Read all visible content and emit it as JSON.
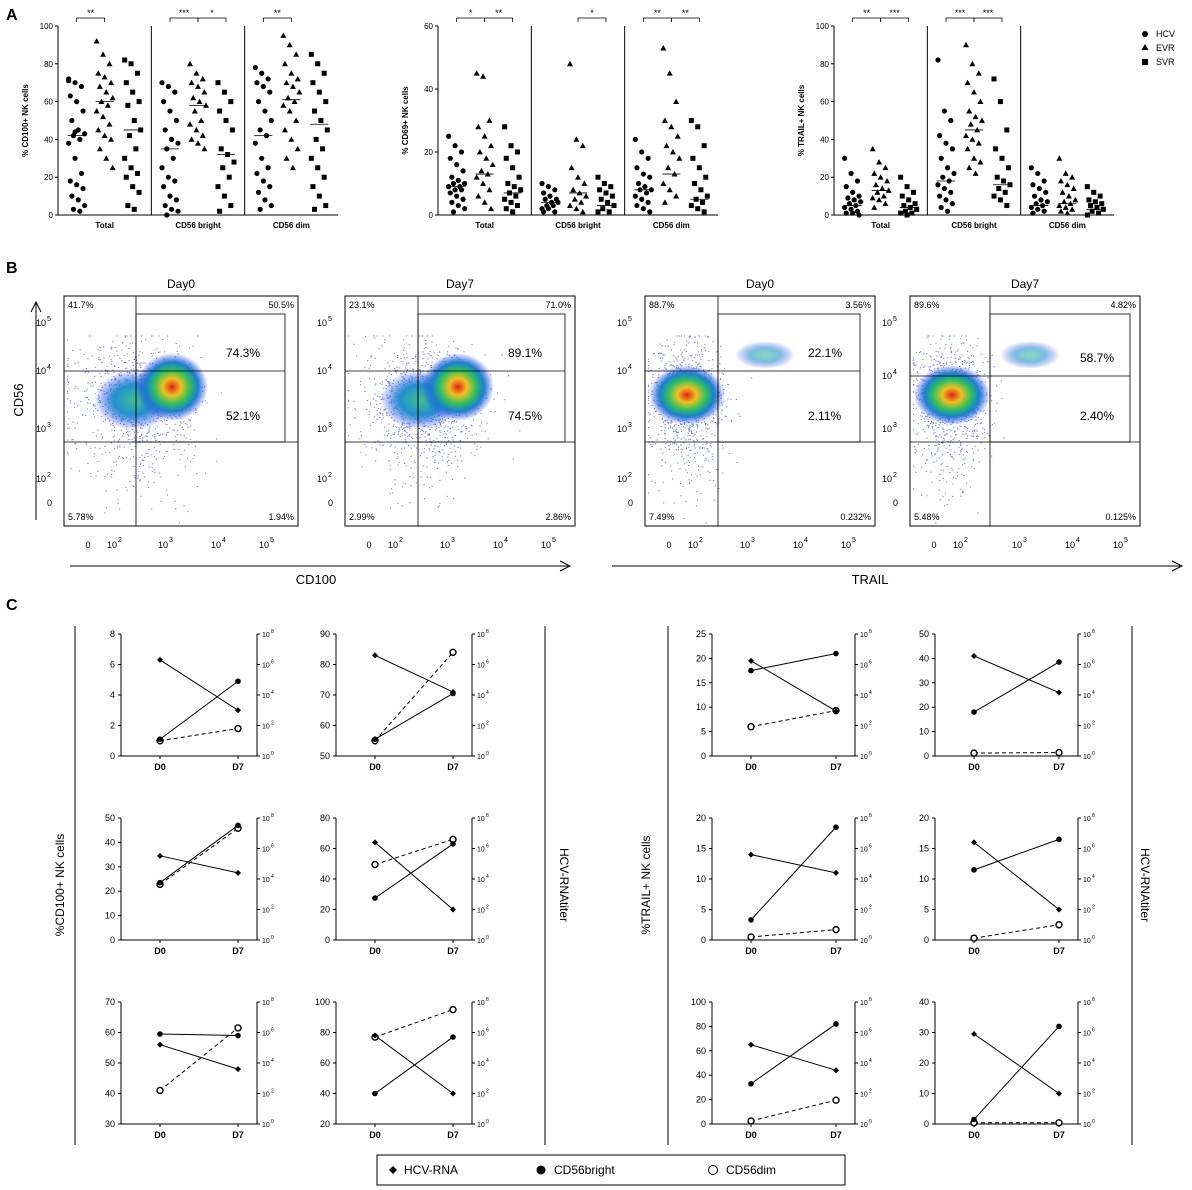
{
  "panel_labels": {
    "a": "A",
    "b": "B",
    "c": "C"
  },
  "legend_a": {
    "hcv": "HCV",
    "evr": "EVR",
    "svr": "SVR"
  },
  "legend_c": {
    "hcv_rna": "HCV-RNA",
    "bright": "CD56bright",
    "dim": "CD56dim"
  },
  "flow_axes": {
    "cd56": "CD56",
    "cd100": "CD100",
    "trail": "TRAIL"
  },
  "flow_ticks": {
    "t0": "0",
    "t2": "10",
    "t3": "10",
    "t4": "10",
    "t5": "10",
    "e2": "2",
    "e3": "3",
    "e4": "4",
    "e5": "5"
  },
  "flow_plots": [
    {
      "title": "Day0",
      "q_ul": "41.7%",
      "q_ur": "50.5%",
      "q_ll": "5.78%",
      "q_lr": "1.94%",
      "box_top": "74.3%",
      "box_bot": "52.1%"
    },
    {
      "title": "Day7",
      "q_ul": "23.1%",
      "q_ur": "71.0%",
      "q_ll": "2.99%",
      "q_lr": "2.86%",
      "box_top": "89.1%",
      "box_bot": "74.5%"
    },
    {
      "title": "Day0",
      "q_ul": "88.7%",
      "q_ur": "3.56%",
      "q_ll": "7.49%",
      "q_lr": "0.232%",
      "box_top": "22.1%",
      "box_bot": "2.11%"
    },
    {
      "title": "Day7",
      "q_ul": "89.6%",
      "q_ur": "4.82%",
      "q_ll": "5.48%",
      "q_lr": "0.125%",
      "box_top": "58.7%",
      "box_bot": "2.40%"
    }
  ],
  "chart_data": [
    {
      "type": "scatter",
      "ylabel": "% CD100+ NK cells",
      "ylim": [
        0,
        100
      ],
      "yticks": [
        "0",
        "20",
        "40",
        "60",
        "80",
        "100"
      ],
      "categories": [
        "Total",
        "CD56 bright",
        "CD56 dim"
      ],
      "series": [
        "HCV",
        "EVR",
        "SVR"
      ],
      "medians": [
        [
          42,
          60,
          45
        ],
        [
          35,
          58,
          32
        ],
        [
          42,
          61,
          48
        ]
      ],
      "significance": [
        {
          "group": 0,
          "from": 0,
          "to": 1,
          "label": "**"
        },
        {
          "group": 1,
          "from": 0,
          "to": 1,
          "label": "***"
        },
        {
          "group": 1,
          "from": 1,
          "to": 2,
          "label": "*"
        },
        {
          "group": 2,
          "from": 0,
          "to": 1,
          "label": "**"
        }
      ],
      "points": [
        [
          [
            72,
            70,
            68,
            63,
            60,
            55,
            50,
            45,
            43,
            42,
            40,
            38,
            30,
            22,
            18,
            16,
            14,
            10,
            8,
            5,
            3,
            2,
            71,
            44
          ],
          [
            92,
            85,
            80,
            75,
            73,
            70,
            68,
            65,
            62,
            60,
            58,
            55,
            52,
            48,
            45,
            42,
            40,
            35,
            30,
            25
          ],
          [
            82,
            80,
            75,
            70,
            65,
            60,
            58,
            50,
            45,
            42,
            35,
            30,
            25,
            22,
            20,
            15,
            12,
            5,
            3
          ]
        ],
        [
          [
            70,
            68,
            65,
            60,
            55,
            50,
            45,
            40,
            38,
            35,
            30,
            25,
            20,
            18,
            15,
            10,
            8,
            5,
            3,
            2,
            0
          ],
          [
            80,
            75,
            72,
            70,
            68,
            65,
            62,
            60,
            58,
            55,
            50,
            48,
            45,
            42,
            40,
            38,
            35
          ],
          [
            70,
            65,
            60,
            55,
            50,
            45,
            35,
            32,
            28,
            25,
            20,
            15,
            10,
            5,
            2
          ]
        ],
        [
          [
            78,
            75,
            72,
            70,
            68,
            65,
            60,
            55,
            50,
            45,
            42,
            38,
            30,
            25,
            22,
            18,
            15,
            12,
            8,
            5,
            3
          ],
          [
            95,
            90,
            85,
            80,
            75,
            72,
            70,
            68,
            65,
            62,
            60,
            58,
            55,
            50,
            45,
            40,
            35,
            30,
            25
          ],
          [
            85,
            80,
            75,
            70,
            65,
            60,
            55,
            50,
            45,
            40,
            35,
            30,
            25,
            20,
            15,
            10,
            5,
            3
          ]
        ]
      ]
    },
    {
      "type": "scatter",
      "ylabel": "% CD69+ NK cells",
      "ylim": [
        0,
        60
      ],
      "yticks": [
        "0",
        "20",
        "40",
        "60"
      ],
      "categories": [
        "Total",
        "CD56 bright",
        "CD56 dim"
      ],
      "series": [
        "HCV",
        "EVR",
        "SVR"
      ],
      "medians": [
        [
          9,
          13,
          7
        ],
        [
          4,
          7,
          3
        ],
        [
          8,
          13,
          5
        ]
      ],
      "significance": [
        {
          "group": 0,
          "from": 0,
          "to": 1,
          "label": "*"
        },
        {
          "group": 0,
          "from": 1,
          "to": 2,
          "label": "**"
        },
        {
          "group": 1,
          "from": 1,
          "to": 2,
          "label": "*"
        },
        {
          "group": 2,
          "from": 0,
          "to": 1,
          "label": "**"
        },
        {
          "group": 2,
          "from": 1,
          "to": 2,
          "label": "**"
        }
      ],
      "points": [
        [
          [
            25,
            22,
            20,
            18,
            16,
            14,
            12,
            11,
            10,
            10,
            9,
            9,
            8,
            8,
            7,
            6,
            5,
            4,
            3,
            2,
            1
          ],
          [
            45,
            44,
            30,
            28,
            25,
            22,
            20,
            18,
            16,
            14,
            13,
            12,
            10,
            8,
            6,
            4,
            2
          ],
          [
            28,
            22,
            20,
            18,
            15,
            12,
            10,
            9,
            8,
            7,
            6,
            5,
            4,
            3,
            2,
            1
          ]
        ],
        [
          [
            10,
            9,
            8,
            7,
            6,
            5,
            5,
            4,
            4,
            3,
            3,
            2,
            2,
            1,
            1
          ],
          [
            48,
            24,
            22,
            15,
            12,
            10,
            8,
            7,
            6,
            5,
            4,
            3,
            2,
            1
          ],
          [
            12,
            10,
            9,
            8,
            7,
            6,
            5,
            4,
            3,
            2,
            1,
            1
          ]
        ],
        [
          [
            24,
            20,
            18,
            15,
            13,
            12,
            10,
            9,
            8,
            8,
            7,
            6,
            5,
            4,
            3,
            2,
            1
          ],
          [
            53,
            45,
            36,
            30,
            28,
            25,
            22,
            20,
            18,
            15,
            13,
            10,
            8,
            6,
            4
          ],
          [
            30,
            28,
            22,
            18,
            15,
            12,
            10,
            8,
            6,
            5,
            4,
            3,
            2,
            1
          ]
        ]
      ]
    },
    {
      "type": "scatter",
      "ylabel": "% TRAIL+ NK cells",
      "ylim": [
        0,
        100
      ],
      "yticks": [
        "0",
        "20",
        "40",
        "60",
        "80",
        "100"
      ],
      "categories": [
        "Total",
        "CD56 bright",
        "CD56 dim"
      ],
      "series": [
        "HCV",
        "EVR",
        "SVR"
      ],
      "medians": [
        [
          5,
          13,
          4
        ],
        [
          18,
          45,
          16
        ],
        [
          5,
          6,
          3
        ]
      ],
      "significance": [
        {
          "group": 0,
          "from": 0,
          "to": 1,
          "label": "**"
        },
        {
          "group": 0,
          "from": 1,
          "to": 2,
          "label": "***"
        },
        {
          "group": 1,
          "from": 0,
          "to": 1,
          "label": "***"
        },
        {
          "group": 1,
          "from": 1,
          "to": 2,
          "label": "***"
        }
      ],
      "points": [
        [
          [
            30,
            22,
            18,
            15,
            12,
            10,
            9,
            8,
            7,
            6,
            5,
            4,
            3,
            2,
            1,
            1,
            0
          ],
          [
            35,
            28,
            25,
            22,
            20,
            18,
            16,
            14,
            13,
            12,
            10,
            9,
            8,
            6,
            4
          ],
          [
            20,
            15,
            12,
            10,
            8,
            6,
            5,
            4,
            3,
            2,
            1,
            1,
            0
          ]
        ],
        [
          [
            82,
            55,
            50,
            42,
            38,
            35,
            30,
            25,
            22,
            20,
            18,
            16,
            14,
            12,
            10,
            8,
            6,
            4,
            2
          ],
          [
            90,
            80,
            75,
            70,
            65,
            60,
            55,
            52,
            50,
            48,
            45,
            42,
            40,
            38,
            35,
            30,
            28,
            25,
            22
          ],
          [
            72,
            60,
            45,
            35,
            30,
            25,
            20,
            18,
            16,
            14,
            12,
            10,
            8,
            5
          ]
        ],
        [
          [
            25,
            22,
            18,
            16,
            14,
            12,
            10,
            8,
            7,
            6,
            5,
            4,
            3,
            2,
            1
          ],
          [
            30,
            22,
            20,
            18,
            16,
            14,
            12,
            10,
            8,
            7,
            6,
            5,
            4,
            3,
            2,
            1
          ],
          [
            15,
            12,
            10,
            8,
            7,
            6,
            5,
            4,
            3,
            2,
            1,
            0
          ]
        ]
      ]
    },
    {
      "type": "line",
      "ylabel": "%CD100+ NK cells",
      "y2label": "HCV-RNAtiter",
      "xticks": [
        "D0",
        "D7"
      ],
      "y2ticks": [
        "10",
        "10",
        "10",
        "10",
        "10"
      ],
      "y2exp": [
        "0",
        "2",
        "4",
        "6",
        "8"
      ],
      "panels": [
        {
          "ylim": [
            0,
            8
          ],
          "yticks": [
            "0",
            "2",
            "4",
            "6",
            "8"
          ],
          "hcv_rna": [
            6.3,
            3.0
          ],
          "bright": [
            1.1,
            4.9
          ],
          "dim": [
            1.0,
            1.8
          ]
        },
        {
          "ylim": [
            50,
            90
          ],
          "yticks": [
            "50",
            "60",
            "70",
            "80",
            "90"
          ],
          "hcv_rna": [
            83,
            71
          ],
          "bright": [
            55.5,
            70.5
          ],
          "dim": [
            55,
            84
          ]
        },
        {
          "ylim": [
            0,
            50
          ],
          "yticks": [
            "0",
            "10",
            "20",
            "30",
            "40",
            "50"
          ],
          "hcv_rna": [
            34.5,
            27.5
          ],
          "bright": [
            23.5,
            47
          ],
          "dim": [
            22.8,
            45.8
          ]
        },
        {
          "ylim": [
            0,
            80
          ],
          "yticks": [
            "0",
            "20",
            "40",
            "60",
            "80"
          ],
          "hcv_rna": [
            64,
            20
          ],
          "bright": [
            27.5,
            63
          ],
          "dim": [
            49.5,
            66
          ]
        },
        {
          "ylim": [
            30,
            70
          ],
          "yticks": [
            "30",
            "40",
            "50",
            "60",
            "70"
          ],
          "hcv_rna": [
            56,
            48
          ],
          "bright": [
            59.5,
            59
          ],
          "dim": [
            41,
            61.5
          ]
        },
        {
          "ylim": [
            20,
            100
          ],
          "yticks": [
            "20",
            "40",
            "60",
            "80",
            "100"
          ],
          "hcv_rna": [
            78,
            40
          ],
          "bright": [
            40,
            77
          ],
          "dim": [
            77,
            95
          ]
        }
      ]
    },
    {
      "type": "line",
      "ylabel": "%TRAIL+ NK cells",
      "y2label": "HCV-RNAtiter",
      "xticks": [
        "D0",
        "D7"
      ],
      "y2ticks": [
        "10",
        "10",
        "10",
        "10",
        "10"
      ],
      "y2exp": [
        "0",
        "2",
        "4",
        "6",
        "8"
      ],
      "panels": [
        {
          "ylim": [
            0,
            25
          ],
          "yticks": [
            "0",
            "5",
            "10",
            "15",
            "20",
            "25"
          ],
          "hcv_rna": [
            19.5,
            9.2
          ],
          "bright": [
            17.5,
            21
          ],
          "dim": [
            6,
            9.3
          ]
        },
        {
          "ylim": [
            0,
            50
          ],
          "yticks": [
            "0",
            "10",
            "20",
            "30",
            "40",
            "50"
          ],
          "hcv_rna": [
            41,
            26
          ],
          "bright": [
            18,
            38.5
          ],
          "dim": [
            1.2,
            1.4
          ]
        },
        {
          "ylim": [
            0,
            20
          ],
          "yticks": [
            "0",
            "5",
            "10",
            "15",
            "20"
          ],
          "hcv_rna": [
            14,
            11
          ],
          "bright": [
            3.3,
            18.5
          ],
          "dim": [
            0.5,
            1.7
          ]
        },
        {
          "ylim": [
            0,
            20
          ],
          "yticks": [
            "0",
            "5",
            "10",
            "15",
            "20"
          ],
          "hcv_rna": [
            16,
            5
          ],
          "bright": [
            11.5,
            16.5
          ],
          "dim": [
            0.3,
            2.5
          ]
        },
        {
          "ylim": [
            0,
            100
          ],
          "yticks": [
            "0",
            "20",
            "40",
            "60",
            "80",
            "100"
          ],
          "hcv_rna": [
            65,
            44
          ],
          "bright": [
            33,
            82
          ],
          "dim": [
            2.5,
            19.5
          ]
        },
        {
          "ylim": [
            0,
            40
          ],
          "yticks": [
            "0",
            "10",
            "20",
            "30",
            "40"
          ],
          "hcv_rna": [
            29.5,
            10
          ],
          "bright": [
            1.5,
            32
          ],
          "dim": [
            0.4,
            0.4
          ]
        }
      ]
    }
  ]
}
